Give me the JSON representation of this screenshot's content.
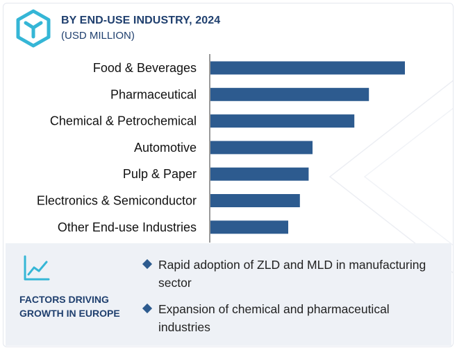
{
  "header": {
    "title": "BY END-USE INDUSTRY, 2024",
    "subtitle": "(USD MILLION)",
    "icon": "cube-icon"
  },
  "colors": {
    "bar": "#2d5b8f",
    "title": "#1f3f6e",
    "panel_bg": "#eef1f6",
    "icon": "#35b6d6"
  },
  "chart_data": {
    "type": "bar",
    "orientation": "horizontal",
    "title": "BY END-USE INDUSTRY, 2024",
    "subtitle": "(USD MILLION)",
    "categories": [
      "Food & Beverages",
      "Pharmaceutical",
      "Chemical & Petrochemical",
      "Automotive",
      "Pulp & Paper",
      "Electronics & Semiconductor",
      "Other End-use Industries"
    ],
    "values": [
      100,
      81.5,
      74,
      52.5,
      50.5,
      46,
      40
    ],
    "value_scale": "relative (no axis values printed)",
    "xlim": [
      0,
      100
    ],
    "grid": false,
    "legend": "none"
  },
  "factors": {
    "icon": "trend-chart-icon",
    "title": "FACTORS DRIVING GROWTH IN EUROPE",
    "items": [
      "Rapid adoption of ZLD and MLD in manufacturing sector",
      "Expansion of chemical and pharmaceutical industries"
    ]
  }
}
